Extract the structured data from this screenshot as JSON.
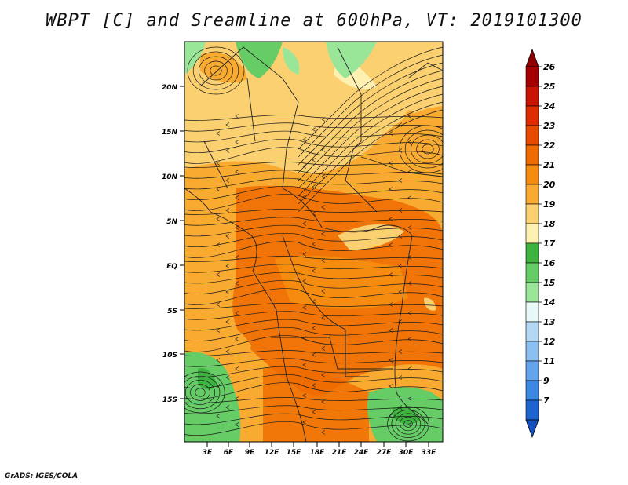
{
  "title": "WBPT [C] and Sreamline at 600hPa, VT: 2019101300",
  "footer": "GrADS: IGES/COLA",
  "map": {
    "lat_ticks": [
      "20N",
      "15N",
      "10N",
      "5N",
      "EQ",
      "5S",
      "10S",
      "15S"
    ],
    "lon_ticks": [
      "3E",
      "6E",
      "9E",
      "12E",
      "15E",
      "18E",
      "21E",
      "24E",
      "27E",
      "30E",
      "33E"
    ]
  },
  "colorbar": {
    "labels": [
      "26",
      "25",
      "24",
      "23",
      "22",
      "21",
      "20",
      "19",
      "18",
      "17",
      "16",
      "15",
      "14",
      "13",
      "12",
      "11",
      "9",
      "7"
    ],
    "colors": [
      "#a50000",
      "#c81400",
      "#dc2c00",
      "#e84a00",
      "#ef6a00",
      "#f58c10",
      "#f8ab30",
      "#fbd070",
      "#fdf0b0",
      "#3fb33f",
      "#66cc66",
      "#99e699",
      "#e8f8f8",
      "#b4d8f4",
      "#8cc0f0",
      "#64a4ec",
      "#3c88e4",
      "#1e64d0"
    ],
    "top_color": "#8c0000",
    "bottom_color": "#1450c0"
  }
}
